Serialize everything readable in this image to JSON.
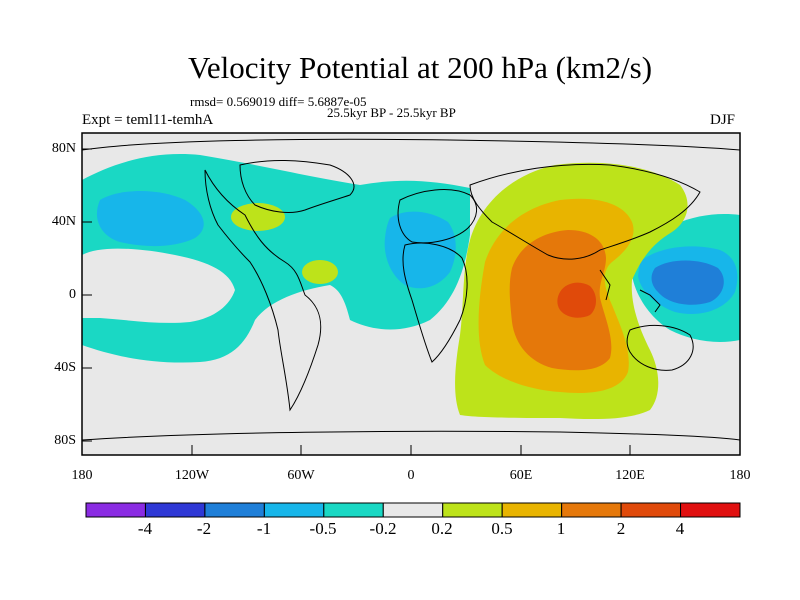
{
  "title": "Velocity Potential at 200 hPa (km2/s)",
  "stats": "rmsd= 0.569019 diff= 5.6887e-05",
  "period": "25.5kyr BP - 25.5kyr BP",
  "experiment": "Expt = teml11-temhA",
  "season": "DJF",
  "lat_labels": [
    "80N",
    "40N",
    "0",
    "40S",
    "80S"
  ],
  "lon_labels": [
    "180",
    "120W",
    "60W",
    "0",
    "60E",
    "120E",
    "180"
  ],
  "colorbar": {
    "labels": [
      "-4",
      "-2",
      "-1",
      "-0.5",
      "-0.2",
      "0.2",
      "0.5",
      "1",
      "2",
      "4"
    ],
    "colors": [
      "#8a2be2",
      "#2f38d6",
      "#1f7fd8",
      "#17b6ea",
      "#1ad8c4",
      "#e8e8e8",
      "#bde31a",
      "#e8b400",
      "#e5780a",
      "#e04a0a",
      "#e01010"
    ]
  }
}
